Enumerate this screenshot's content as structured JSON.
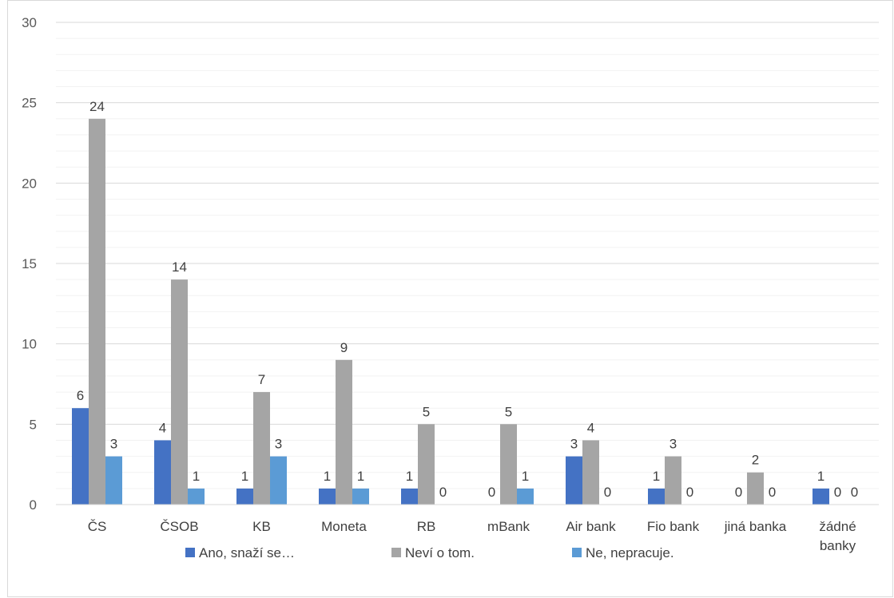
{
  "chart_data": {
    "type": "bar",
    "categories": [
      [
        "ČS"
      ],
      [
        "ČSOB"
      ],
      [
        "KB"
      ],
      [
        "Moneta"
      ],
      [
        "RB"
      ],
      [
        "mBank"
      ],
      [
        "Air bank"
      ],
      [
        "Fio bank"
      ],
      [
        "jiná banka"
      ],
      [
        "žádné",
        "banky"
      ]
    ],
    "series": [
      {
        "name": "Ano, snaží se…",
        "color": "#4472C4",
        "values": [
          6,
          4,
          1,
          1,
          1,
          0,
          3,
          1,
          0,
          1
        ]
      },
      {
        "name": "Neví o tom.",
        "color": "#A5A5A5",
        "values": [
          24,
          14,
          7,
          9,
          5,
          5,
          4,
          3,
          2,
          0
        ]
      },
      {
        "name": "Ne, nepracuje.",
        "color": "#5B9BD5",
        "values": [
          3,
          1,
          3,
          1,
          0,
          1,
          0,
          0,
          0,
          0
        ]
      }
    ],
    "yticks": [
      "0",
      "5",
      "10",
      "15",
      "20",
      "25",
      "30"
    ],
    "ylim": [
      0,
      30
    ],
    "major_step": 5,
    "minor_step": 1,
    "grid": true,
    "legend_position": "bottom",
    "data_labels": true
  }
}
